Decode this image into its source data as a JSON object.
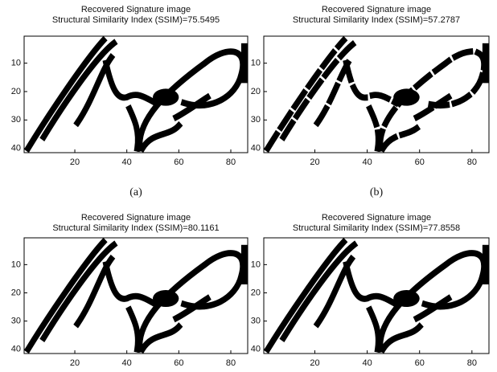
{
  "panels": [
    {
      "title": [
        "Recovered Signature image",
        "Structural Similarity Index (SSIM)=75.5495"
      ],
      "caption": "(a)",
      "xticks": [
        20,
        40,
        60,
        80
      ],
      "yticks": [
        10,
        20,
        30,
        40
      ],
      "xlim": [
        0.5,
        86.5
      ],
      "ylim": [
        0.5,
        41.5
      ]
    },
    {
      "title": [
        "Recovered Signature image",
        "Structural Similarity Index (SSIM)=57.2787"
      ],
      "caption": "(b)",
      "xticks": [
        20,
        40,
        60,
        80
      ],
      "yticks": [
        10,
        20,
        30,
        40
      ],
      "xlim": [
        0.5,
        86.5
      ],
      "ylim": [
        0.5,
        41.5
      ]
    },
    {
      "title": [
        "Recovered Signature image",
        "Structural Similarity Index (SSIM)=80.1161"
      ],
      "xticks": [
        20,
        40,
        60,
        80
      ],
      "yticks": [
        10,
        20,
        30,
        40
      ],
      "xlim": [
        0.5,
        86.5
      ],
      "ylim": [
        0.5,
        41.5
      ]
    },
    {
      "title": [
        "Recovered Signature image",
        "Structural Similarity Index (SSIM)=77.8558"
      ],
      "xticks": [
        20,
        40,
        60,
        80
      ],
      "yticks": [
        10,
        20,
        30,
        40
      ],
      "xlim": [
        0.5,
        86.5
      ],
      "ylim": [
        0.5,
        41.5
      ]
    }
  ]
}
